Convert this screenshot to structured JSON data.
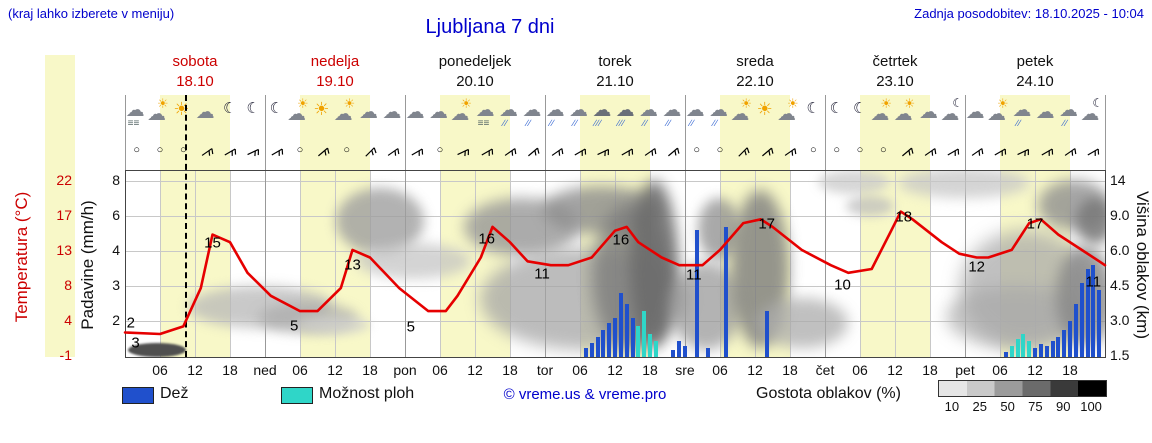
{
  "header": {
    "hint": "(kraj lahko izberete v meniju)",
    "title": "Ljubljana 7 dni",
    "updated": "Zadnja posodobitev: 18.10.2025 - 10:04"
  },
  "days": [
    {
      "name": "sobota",
      "date": "18.10",
      "color": "#cc0000"
    },
    {
      "name": "nedelja",
      "date": "19.10",
      "color": "#cc0000"
    },
    {
      "name": "ponedeljek",
      "date": "20.10",
      "color": "#111111"
    },
    {
      "name": "torek",
      "date": "21.10",
      "color": "#111111"
    },
    {
      "name": "sreda",
      "date": "22.10",
      "color": "#111111"
    },
    {
      "name": "četrtek",
      "date": "23.10",
      "color": "#111111"
    },
    {
      "name": "petek",
      "date": "24.10",
      "color": "#111111"
    }
  ],
  "axes": {
    "temp_label": "Temperatura (°C)",
    "precip_label": "Padavine (mm/h)",
    "cloud_label": "Višina oblakov (km)",
    "temp_ticks": [
      "22",
      "17",
      "13",
      "8",
      "4",
      "-1"
    ],
    "precip_ticks": [
      "8",
      "6",
      "4",
      "3",
      "2"
    ],
    "cloud_ticks": [
      "14",
      "9.0",
      "6.0",
      "4.5",
      "3.0",
      "1.5"
    ],
    "time_ticks": [
      "06",
      "12",
      "18"
    ],
    "day_abbrevs": [
      "ned",
      "pon",
      "tor",
      "sre",
      "čet",
      "pet"
    ]
  },
  "legend": {
    "rain": "Dež",
    "shower": "Možnost ploh",
    "copyright": "© vreme.us & vreme.pro",
    "cloud_density": "Gostota oblakov (%)",
    "density_ticks": [
      "10",
      "25",
      "50",
      "75",
      "90",
      "100"
    ]
  },
  "colors": {
    "accent_blue": "#0000cc",
    "weekend_red": "#cc0000",
    "temp_curve": "#e60000",
    "rain_bar": "#2050cc",
    "shower_bar": "#2fd6c8",
    "day_band": "#f8f8c8",
    "grid_minor": "#c8c8c8",
    "grid_major": "#999999",
    "density_scale": [
      "#e6e6e6",
      "#c9c9c9",
      "#9b9b9b",
      "#6b6b6b",
      "#3a3a3a",
      "#000000"
    ]
  },
  "chart_data": {
    "type": "meteogram",
    "title": "Ljubljana 7 dni",
    "x_axis": {
      "unit": "hour",
      "range": [
        0,
        168
      ],
      "hours_per_day": 24,
      "daylight_band_hours": [
        6,
        18
      ]
    },
    "now_marker_hour": 10.3,
    "temperature": {
      "unit": "°C",
      "axis_range": [
        -1,
        22
      ],
      "axis_tick_values": [
        22,
        17,
        13,
        8,
        4,
        -1
      ],
      "series": [
        [
          0,
          2.2
        ],
        [
          6,
          2
        ],
        [
          10,
          3
        ],
        [
          13,
          8
        ],
        [
          15,
          15
        ],
        [
          18,
          14
        ],
        [
          21,
          10
        ],
        [
          25,
          7
        ],
        [
          30,
          5
        ],
        [
          33,
          5
        ],
        [
          37,
          8
        ],
        [
          39,
          13
        ],
        [
          42,
          12
        ],
        [
          47,
          8
        ],
        [
          52,
          5
        ],
        [
          55,
          5
        ],
        [
          57,
          7
        ],
        [
          61,
          12
        ],
        [
          63,
          16
        ],
        [
          66,
          14
        ],
        [
          69,
          11.5
        ],
        [
          73,
          11
        ],
        [
          76,
          11
        ],
        [
          80,
          12
        ],
        [
          84,
          15.5
        ],
        [
          86,
          16
        ],
        [
          88,
          14
        ],
        [
          92,
          12
        ],
        [
          95,
          11
        ],
        [
          99,
          11
        ],
        [
          102,
          13
        ],
        [
          106,
          16.5
        ],
        [
          109,
          17
        ],
        [
          111,
          16
        ],
        [
          116,
          13
        ],
        [
          121,
          11
        ],
        [
          124,
          10
        ],
        [
          128,
          10.5
        ],
        [
          131,
          15
        ],
        [
          133,
          18
        ],
        [
          135,
          17
        ],
        [
          140,
          14
        ],
        [
          143,
          12.5
        ],
        [
          146,
          12
        ],
        [
          148,
          12
        ],
        [
          152,
          13
        ],
        [
          155,
          16.5
        ],
        [
          157,
          17
        ],
        [
          160,
          15
        ],
        [
          164,
          13
        ],
        [
          167,
          11.5
        ],
        [
          168,
          11
        ]
      ],
      "point_labels": [
        [
          1,
          3.5,
          "2"
        ],
        [
          1.8,
          0.8,
          "3"
        ],
        [
          15,
          13.9,
          "15"
        ],
        [
          29,
          3,
          "5"
        ],
        [
          39,
          11,
          "13"
        ],
        [
          49,
          2.9,
          "5"
        ],
        [
          62,
          14.4,
          "16"
        ],
        [
          71.5,
          9.8,
          "11"
        ],
        [
          85,
          14.3,
          "16"
        ],
        [
          97.5,
          9.7,
          "11"
        ],
        [
          110,
          16.4,
          "17"
        ],
        [
          123,
          8.4,
          "10"
        ],
        [
          133.5,
          17.3,
          "18"
        ],
        [
          146,
          10.8,
          "12"
        ],
        [
          156,
          16.4,
          "17"
        ],
        [
          166,
          8.8,
          "11"
        ]
      ]
    },
    "precipitation": {
      "unit": "mm/h",
      "axis_tick_values": [
        8,
        6,
        4,
        3,
        2
      ],
      "rain_bars": [
        [
          79,
          0.5
        ],
        [
          80,
          0.8
        ],
        [
          81,
          1.1
        ],
        [
          82,
          1.5
        ],
        [
          83,
          1.9
        ],
        [
          84,
          2.1
        ],
        [
          85,
          2.8
        ],
        [
          86,
          2.5
        ],
        [
          87,
          2.1
        ],
        [
          94,
          0.4
        ],
        [
          95,
          0.9
        ],
        [
          96,
          0.6
        ],
        [
          98,
          5.2
        ],
        [
          100,
          0.5
        ],
        [
          103,
          5.4
        ],
        [
          110,
          2.3
        ],
        [
          151,
          0.3
        ],
        [
          156,
          0.5
        ],
        [
          157,
          0.7
        ],
        [
          158,
          0.6
        ],
        [
          159,
          0.9
        ],
        [
          160,
          1.1
        ],
        [
          161,
          1.5
        ],
        [
          162,
          2.0
        ],
        [
          163,
          2.5
        ],
        [
          164,
          3.1
        ],
        [
          165,
          3.5
        ],
        [
          166,
          3.6
        ],
        [
          167,
          2.9
        ]
      ],
      "shower_bars": [
        [
          88,
          1.7
        ],
        [
          89,
          2.3
        ],
        [
          90,
          1.3
        ],
        [
          91,
          0.9
        ],
        [
          152,
          0.6
        ],
        [
          153,
          1.0
        ],
        [
          154,
          1.3
        ],
        [
          155,
          0.9
        ]
      ]
    },
    "cloud_height_axis": {
      "unit": "km",
      "ticks": [
        14,
        9.0,
        6.0,
        4.5,
        3.0,
        1.5
      ]
    },
    "weather_icons": [
      "fog",
      "suncloud",
      "sun",
      "cloud",
      "moon",
      "moon",
      "moon",
      "suncloud",
      "sun",
      "suncloud",
      "cloud",
      "cloud",
      "cloud",
      "cloud",
      "suncloud",
      "fog",
      "rain",
      "rain",
      "rain",
      "rain",
      "heavyrain",
      "heavyrain",
      "rain",
      "rain",
      "rain",
      "rain",
      "suncloud",
      "sun",
      "suncloud",
      "moon",
      "moon",
      "moon",
      "suncloud",
      "suncloud",
      "cloud",
      "mooncloud",
      "cloud",
      "suncloud",
      "rain",
      "cloud",
      "rain",
      "mooncloud"
    ],
    "wind": [
      "o",
      "o",
      "o",
      55,
      60,
      65,
      60,
      "o",
      50,
      "o",
      45,
      55,
      60,
      "o",
      65,
      60,
      55,
      50,
      55,
      60,
      65,
      60,
      55,
      50,
      "o",
      "o",
      45,
      50,
      55,
      "o",
      "o",
      "o",
      "o",
      50,
      55,
      60,
      55,
      60,
      65,
      60,
      55,
      60
    ],
    "cloud_shading": [
      [
        128,
        343,
        58,
        14,
        "#4f4f4f",
        1,
        1
      ],
      [
        188,
        286,
        145,
        42,
        "#b8b8b8",
        0.75,
        6
      ],
      [
        258,
        303,
        100,
        30,
        "#a9a9a9",
        0.7,
        6
      ],
      [
        296,
        316,
        74,
        18,
        "#cfcfcf",
        0.7,
        5
      ],
      [
        336,
        188,
        88,
        66,
        "#9f9f9f",
        0.8,
        6
      ],
      [
        356,
        243,
        115,
        36,
        "#c2c2c2",
        0.7,
        6
      ],
      [
        464,
        198,
        115,
        58,
        "#979797",
        0.8,
        7
      ],
      [
        480,
        248,
        210,
        102,
        "#a6a6a6",
        0.75,
        8
      ],
      [
        543,
        186,
        118,
        48,
        "#8c8c8c",
        0.8,
        7
      ],
      [
        592,
        203,
        78,
        148,
        "#7b7b7b",
        0.8,
        8
      ],
      [
        630,
        180,
        48,
        168,
        "#6a6a6a",
        0.85,
        7
      ],
      [
        670,
        262,
        72,
        88,
        "#9a9a9a",
        0.75,
        7
      ],
      [
        698,
        198,
        42,
        62,
        "#8d8d8d",
        0.75,
        6
      ],
      [
        731,
        190,
        58,
        158,
        "#7d7d7d",
        0.8,
        7
      ],
      [
        756,
        298,
        92,
        50,
        "#ababab",
        0.75,
        7
      ],
      [
        818,
        170,
        72,
        24,
        "#c9c9c9",
        0.75,
        5
      ],
      [
        846,
        196,
        48,
        20,
        "#bdbdbd",
        0.75,
        5
      ],
      [
        898,
        168,
        132,
        30,
        "#c6c6c6",
        0.75,
        6
      ],
      [
        946,
        286,
        142,
        62,
        "#b3b3b3",
        0.75,
        8
      ],
      [
        960,
        230,
        132,
        118,
        "#a6a6a6",
        0.7,
        9
      ],
      [
        1038,
        180,
        72,
        50,
        "#8f8f8f",
        0.8,
        7
      ],
      [
        1056,
        246,
        58,
        102,
        "#868686",
        0.8,
        7
      ],
      [
        1076,
        198,
        38,
        46,
        "#787878",
        0.85,
        6
      ]
    ]
  }
}
